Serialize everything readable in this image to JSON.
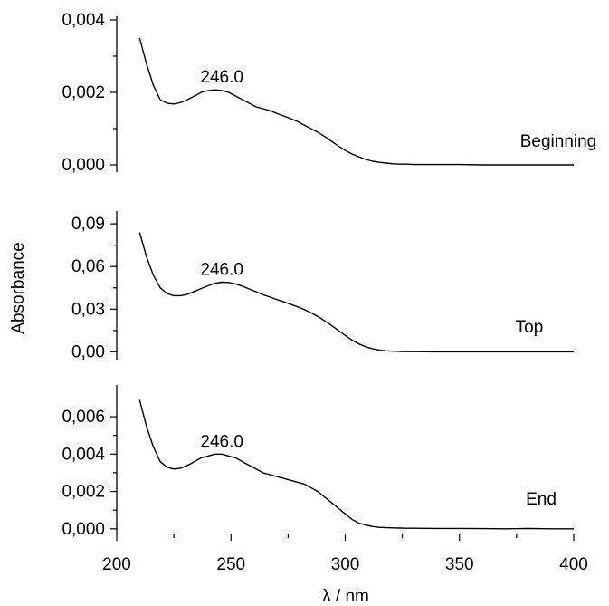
{
  "chart_data": {
    "type": "line",
    "xlabel": "λ / nm",
    "ylabel": "Absorbance",
    "xlim": [
      200,
      400
    ],
    "x_ticks": [
      "200",
      "250",
      "300",
      "350",
      "400"
    ],
    "grid": false,
    "panels": [
      {
        "name": "Beginning",
        "ylim": [
          -0.0002,
          0.0041
        ],
        "y_ticks": [
          {
            "value": 0,
            "label": "0,000"
          },
          {
            "value": 0.002,
            "label": "0,002"
          },
          {
            "value": 0.004,
            "label": "0,004"
          }
        ],
        "peak_label": "246.0",
        "x": [
          210,
          213,
          216,
          219,
          222,
          225,
          228,
          231,
          234,
          237,
          240,
          243,
          246,
          249,
          252,
          255,
          258,
          261,
          264,
          267,
          270,
          273,
          276,
          279,
          282,
          285,
          288,
          291,
          294,
          297,
          300,
          303,
          306,
          309,
          312,
          315,
          318,
          321,
          324,
          327,
          330,
          340,
          350,
          360,
          370,
          380,
          390,
          400
        ],
        "y": [
          0.0035,
          0.0028,
          0.0022,
          0.0018,
          0.0017,
          0.00168,
          0.00172,
          0.0018,
          0.0019,
          0.002,
          0.00205,
          0.00207,
          0.00205,
          0.002,
          0.0019,
          0.0018,
          0.0017,
          0.0016,
          0.00155,
          0.0015,
          0.00142,
          0.00135,
          0.00128,
          0.0012,
          0.0011,
          0.001,
          0.0009,
          0.00078,
          0.00065,
          0.00052,
          0.0004,
          0.0003,
          0.00022,
          0.00015,
          0.0001,
          7e-05,
          5e-05,
          3e-05,
          2e-05,
          2e-05,
          1e-05,
          1e-05,
          1e-05,
          0.0,
          0.0,
          0.0,
          0.0,
          0.0
        ]
      },
      {
        "name": "Top",
        "ylim": [
          -0.0055,
          0.099
        ],
        "y_ticks": [
          {
            "value": 0,
            "label": "0,00"
          },
          {
            "value": 0.03,
            "label": "0,03"
          },
          {
            "value": 0.06,
            "label": "0,06"
          },
          {
            "value": 0.09,
            "label": "0,09"
          }
        ],
        "peak_label": "246.0",
        "x": [
          210,
          213,
          216,
          219,
          222,
          225,
          228,
          231,
          234,
          237,
          240,
          243,
          246,
          249,
          252,
          255,
          258,
          261,
          264,
          267,
          270,
          273,
          276,
          279,
          282,
          285,
          288,
          291,
          294,
          297,
          300,
          303,
          306,
          309,
          312,
          315,
          318,
          321,
          324,
          327,
          330,
          340,
          350,
          360,
          370,
          380,
          390,
          400
        ],
        "y": [
          0.084,
          0.067,
          0.054,
          0.045,
          0.041,
          0.0395,
          0.0395,
          0.0405,
          0.0425,
          0.0445,
          0.0465,
          0.0482,
          0.049,
          0.0488,
          0.0478,
          0.0462,
          0.0442,
          0.0422,
          0.0402,
          0.0385,
          0.0368,
          0.0352,
          0.0335,
          0.0318,
          0.0298,
          0.0275,
          0.0248,
          0.0218,
          0.0185,
          0.015,
          0.0115,
          0.0082,
          0.0055,
          0.0035,
          0.0021,
          0.0012,
          0.0007,
          0.0004,
          0.0002,
          0.0001,
          0.0001,
          0.0,
          0.0,
          0.0,
          0.0,
          0.0,
          0.0,
          0.0
        ]
      },
      {
        "name": "End",
        "ylim": [
          -0.0003,
          0.0077
        ],
        "y_ticks": [
          {
            "value": 0,
            "label": "0,000"
          },
          {
            "value": 0.002,
            "label": "0,002"
          },
          {
            "value": 0.004,
            "label": "0,004"
          },
          {
            "value": 0.006,
            "label": "0,006"
          }
        ],
        "peak_label": "246.0",
        "x": [
          210,
          213,
          216,
          219,
          222,
          225,
          228,
          231,
          234,
          237,
          240,
          243,
          246,
          249,
          252,
          255,
          258,
          261,
          264,
          267,
          270,
          273,
          276,
          279,
          282,
          285,
          288,
          291,
          294,
          297,
          300,
          303,
          306,
          309,
          312,
          315,
          318,
          321,
          324,
          327,
          330,
          340,
          350,
          360,
          370,
          380,
          390,
          400
        ],
        "y": [
          0.0069,
          0.0055,
          0.0044,
          0.0036,
          0.0033,
          0.0032,
          0.00325,
          0.0034,
          0.0036,
          0.0038,
          0.0039,
          0.004,
          0.004,
          0.0039,
          0.0038,
          0.0036,
          0.0034,
          0.0032,
          0.003,
          0.0029,
          0.0028,
          0.0027,
          0.0026,
          0.0025,
          0.0024,
          0.0022,
          0.002,
          0.0017,
          0.0014,
          0.0011,
          0.0008,
          0.0005,
          0.0003,
          0.0002,
          0.00012,
          8e-05,
          6e-05,
          5e-05,
          4e-05,
          3e-05,
          3e-05,
          2e-05,
          2e-05,
          1e-05,
          0.0,
          2e-05,
          0.0,
          0.0
        ]
      }
    ]
  }
}
